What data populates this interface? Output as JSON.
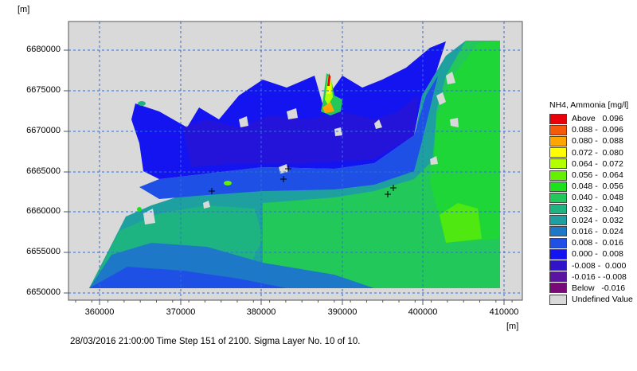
{
  "map": {
    "y_unit": "[m]",
    "x_unit": "[m]",
    "y_ticks": [
      "6680000",
      "6675000",
      "6670000",
      "6665000",
      "6660000",
      "6655000",
      "6650000"
    ],
    "x_ticks": [
      "360000",
      "370000",
      "380000",
      "390000",
      "400000",
      "410000"
    ],
    "grid": true
  },
  "legend": {
    "title": "NH4, Ammonia [mg/l]",
    "items": [
      {
        "label": "Above   0.096",
        "color": "#e8000b"
      },
      {
        "label": "0.088 -  0.096",
        "color": "#f55a0a"
      },
      {
        "label": "0.080 -  0.088",
        "color": "#ffa500"
      },
      {
        "label": "0.072 -  0.080",
        "color": "#ffff00"
      },
      {
        "label": "0.064 -  0.072",
        "color": "#b4ff00"
      },
      {
        "label": "0.056 -  0.064",
        "color": "#64f000"
      },
      {
        "label": "0.048 -  0.056",
        "color": "#1ee11e"
      },
      {
        "label": "0.040 -  0.048",
        "color": "#23c85a"
      },
      {
        "label": "0.032 -  0.040",
        "color": "#1eb482"
      },
      {
        "label": "0.024 -  0.032",
        "color": "#1ea0a0"
      },
      {
        "label": "0.016 -  0.024",
        "color": "#1e78c8"
      },
      {
        "label": "0.008 -  0.016",
        "color": "#1e50e6"
      },
      {
        "label": "0.000 -  0.008",
        "color": "#1414f0"
      },
      {
        "label": "-0.008 -  0.000",
        "color": "#3214c8"
      },
      {
        "label": "-0.016 - -0.008",
        "color": "#5a14a0"
      },
      {
        "label": "Below   -0.016",
        "color": "#780a78"
      },
      {
        "label": "Undefined Value",
        "color": "#d9d9d9"
      }
    ]
  },
  "status_line": "28/03/2016 21:00:00  Time Step 151 of 2100. Sigma Layer No. 10 of 10."
}
